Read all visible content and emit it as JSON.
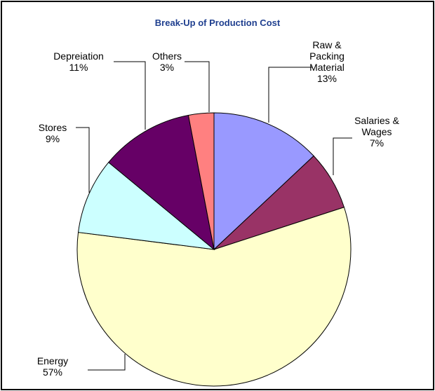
{
  "chart_data": {
    "type": "pie",
    "title": "Break-Up of Production Cost",
    "categories": [
      "Raw & Packing Material",
      "Salaries & Wages",
      "Energy",
      "Stores",
      "Depreiation",
      "Others"
    ],
    "values": [
      13,
      7,
      57,
      9,
      11,
      3
    ],
    "value_labels": [
      "13%",
      "7%",
      "57%",
      "9%",
      "11%",
      "3%"
    ],
    "colors": [
      "#9999ff",
      "#993366",
      "#ffffcc",
      "#ccffff",
      "#660066",
      "#ff8080"
    ]
  }
}
